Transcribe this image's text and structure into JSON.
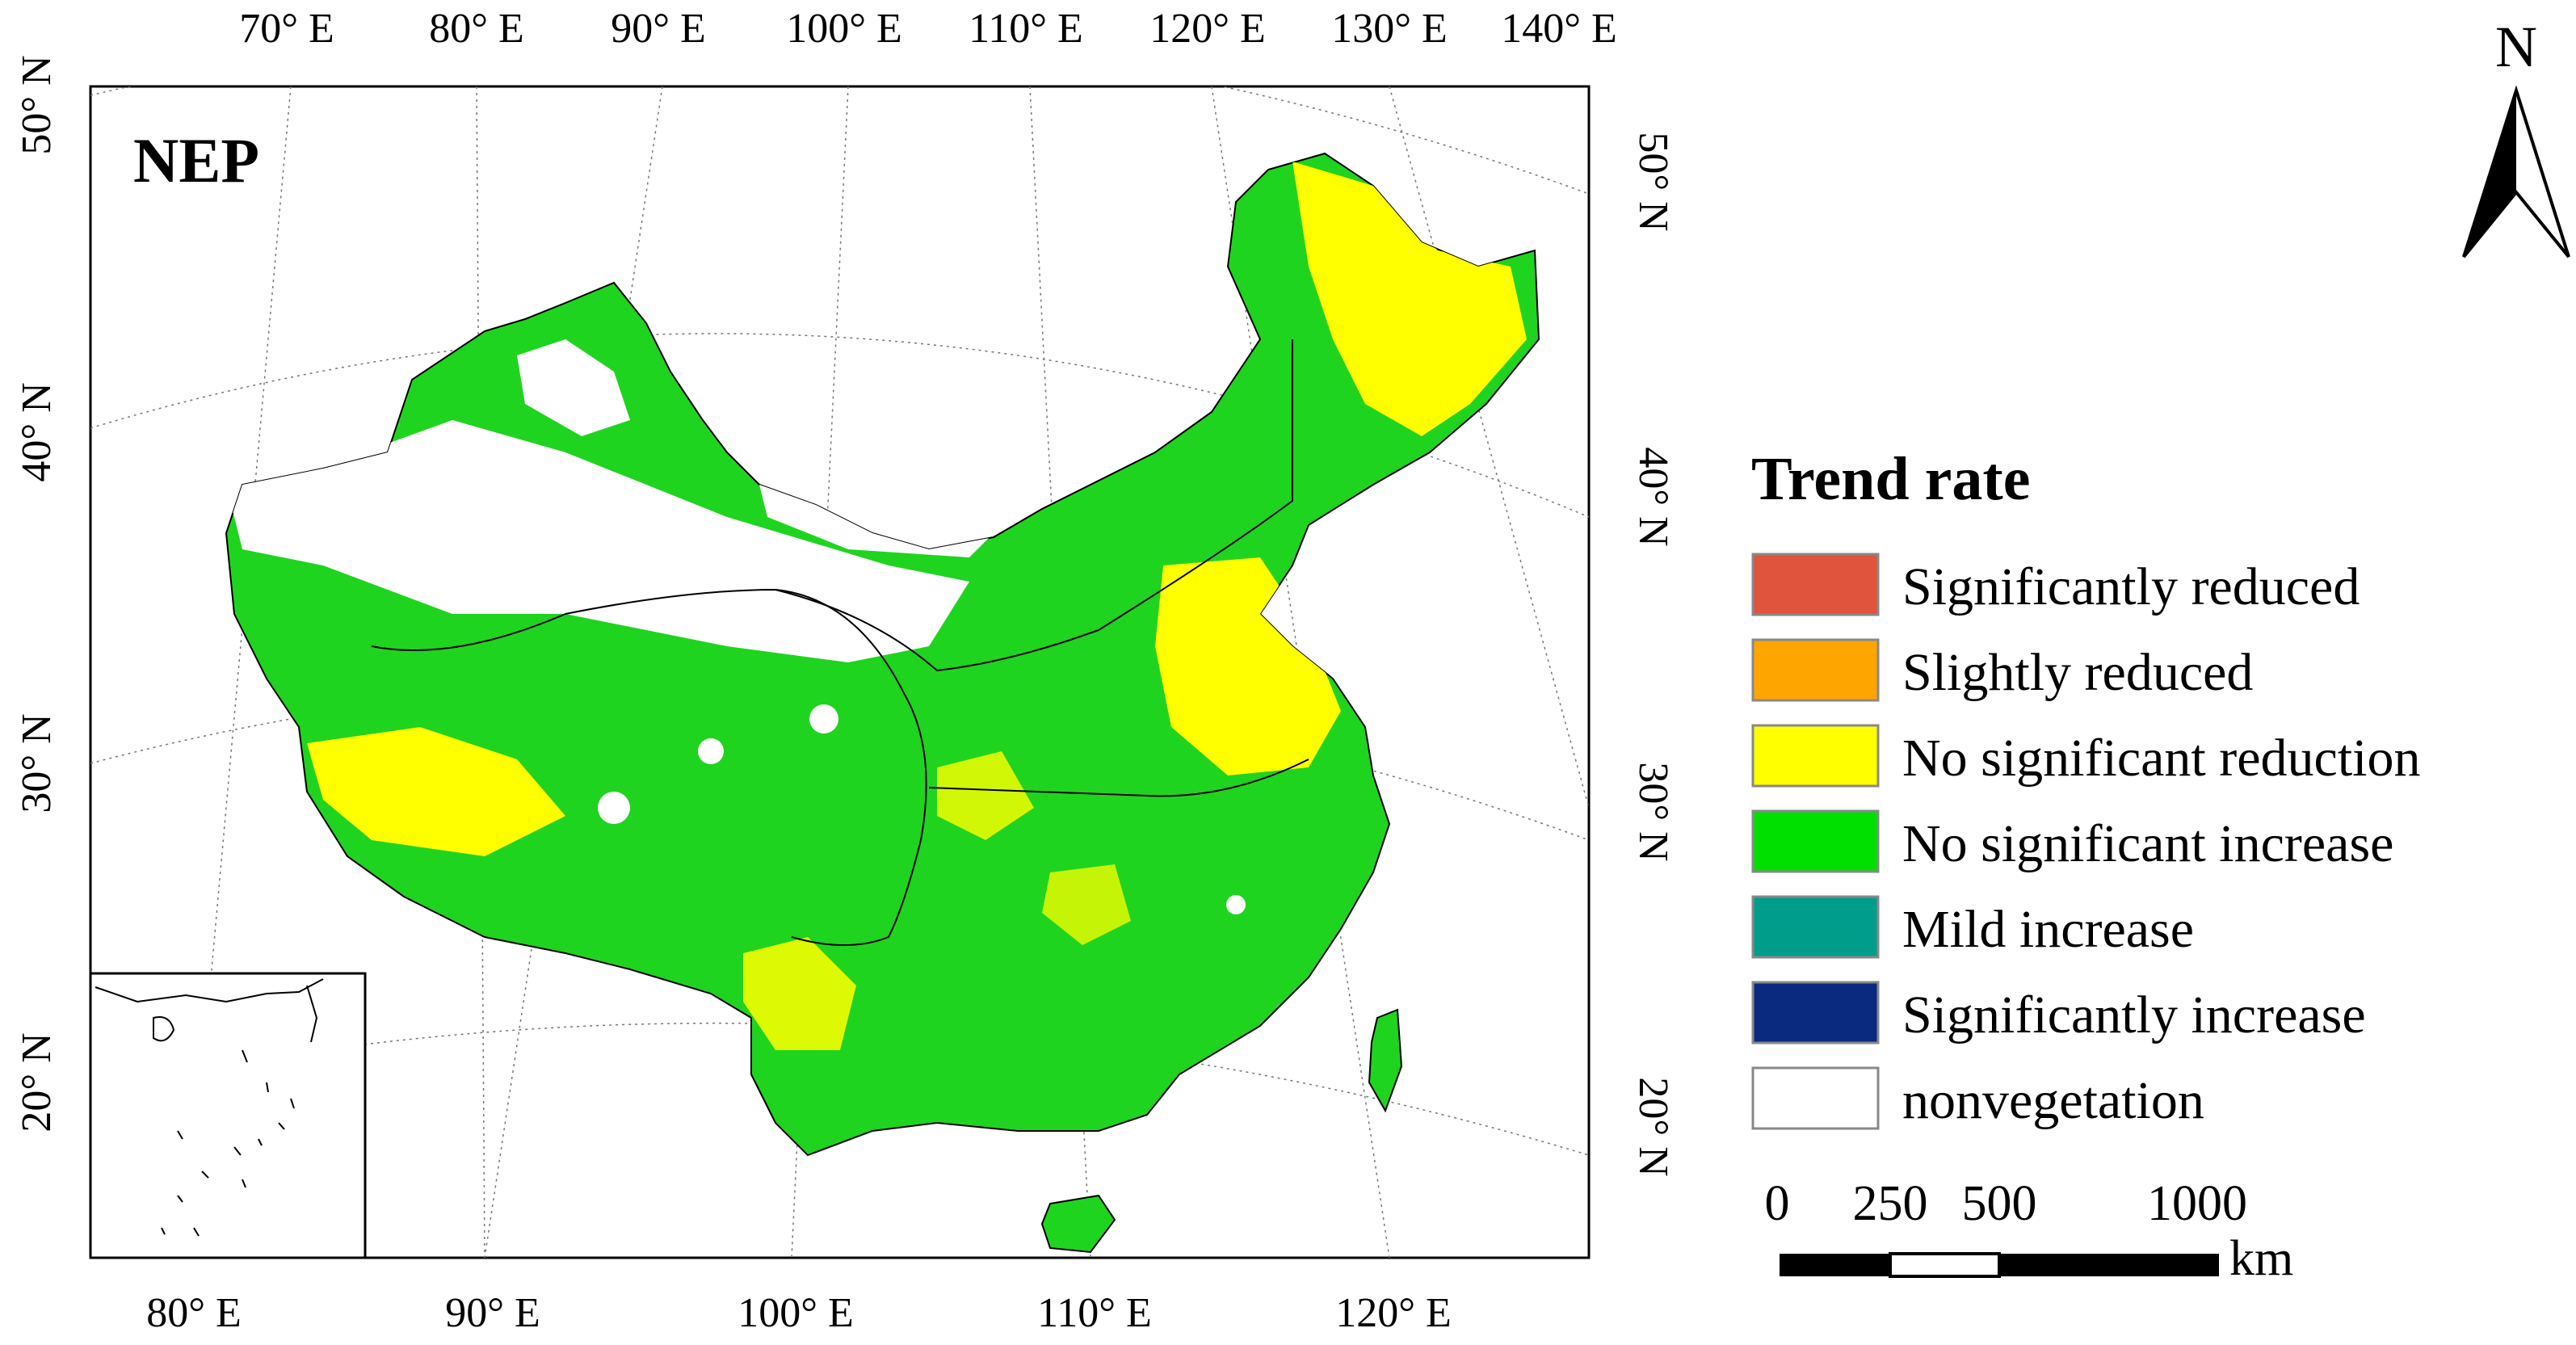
{
  "map": {
    "panel_label": "NEP",
    "top_axis_labels": [
      "70° E",
      "80° E",
      "90° E",
      "100° E",
      "110° E",
      "120° E",
      "130° E",
      "140° E"
    ],
    "bottom_axis_labels": [
      "80° E",
      "90° E",
      "100° E",
      "110° E",
      "120° E"
    ],
    "left_axis_labels": [
      "50° N",
      "40° N",
      "30° N",
      "20° N"
    ],
    "right_axis_labels": [
      "50° N",
      "40° N",
      "30° N",
      "20° N"
    ],
    "north_arrow_label": "N"
  },
  "legend": {
    "title": "Trend rate",
    "items": [
      {
        "label": "Significantly reduced",
        "color": "#e0533c"
      },
      {
        "label": "Slightly reduced",
        "color": "#ffa500"
      },
      {
        "label": "No significant reduction",
        "color": "#ffff00"
      },
      {
        "label": "No significant increase",
        "color": "#00e000"
      },
      {
        "label": "Mild increase",
        "color": "#009e8a"
      },
      {
        "label": "Significantly increase",
        "color": "#0a2a80"
      },
      {
        "label": "nonvegetation",
        "color": "#ffffff"
      }
    ]
  },
  "scale_bar": {
    "tick_labels": [
      "0",
      "250",
      "500",
      "1000"
    ],
    "unit": "km"
  }
}
